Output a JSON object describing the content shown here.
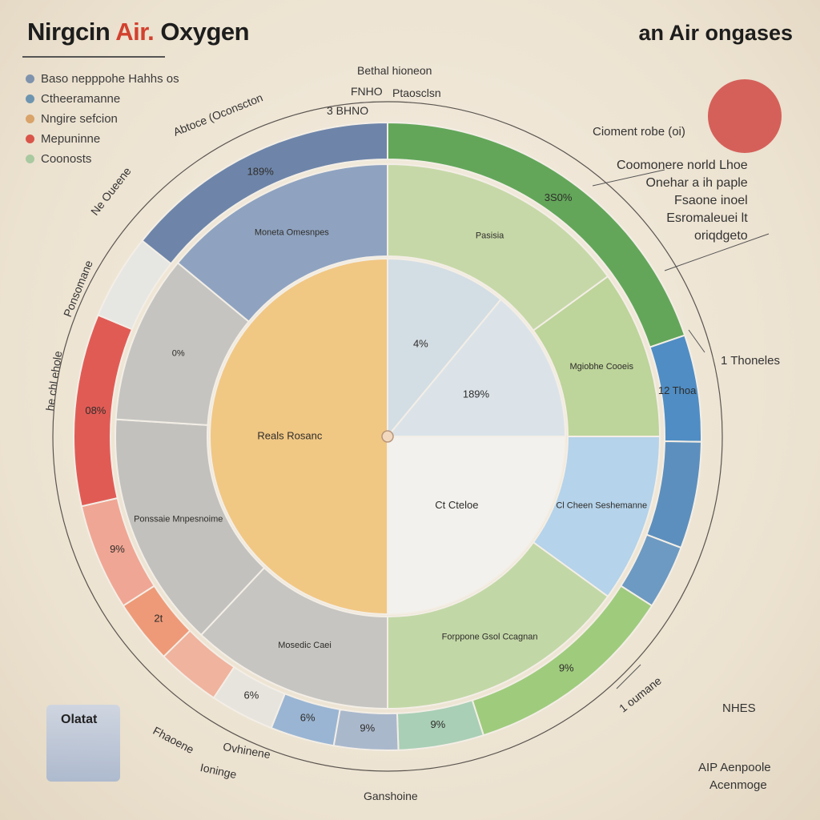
{
  "header": {
    "title_left_a": "Nirgcin",
    "title_left_b": "Air.",
    "title_left_c": "Oxygen",
    "title_right": "an Air ongases"
  },
  "legend": [
    {
      "label": "Baso nepppohe Hahhs os",
      "color": "#7f93ad"
    },
    {
      "label": "Ctheeramanne",
      "color": "#6e95b0"
    },
    {
      "label": "Nngire sefcion",
      "color": "#d9a36a"
    },
    {
      "label": "Mepuninne",
      "color": "#d9554a"
    },
    {
      "label": "Coonosts",
      "color": "#a9c9a0"
    }
  ],
  "side_label": {
    "text": "Cioment robe (oi)",
    "circle_color": "#d5605a"
  },
  "annotation_right": [
    "Coomonere norld Lhoe",
    "Onehar a ih paple",
    "Fsaone inoel",
    "Esromaleuei lt",
    "oriqdgeto"
  ],
  "outer_labels": {
    "top_a": "Bethal hioneon",
    "top_b": "FNHO",
    "top_c": "Ptaosclsn",
    "top_d": "3 BHNO",
    "upper_left": "Abtoce (Oconscton",
    "left_a": "Ne Oueene",
    "left_b": "Ponsomane",
    "left_c": "he chl ehole",
    "right_mid": "1 Thoneles",
    "right_low": "NHES",
    "lower_right": "1 oumane",
    "bottom_a": "Fhaoene",
    "bottom_b": "Ovhinene",
    "bottom_c": "Ioninge",
    "bottom_d": "Ganshoine",
    "stamp": "Olatat",
    "bottom_right_a": "AIP Aenpoole",
    "bottom_right_b": "Acenmoge"
  },
  "chart_data": {
    "type": "pie",
    "title": "",
    "rings": [
      {
        "name": "",
        "slices": [
          {
            "label": "4%",
            "value": 11,
            "color": "#d3dde4"
          },
          {
            "label": "189%",
            "value": 14,
            "color": "#dbe3e9"
          },
          {
            "label": "Ct Cteloe",
            "value": 25,
            "color": "#f3f1ee"
          },
          {
            "label": "Reals Rosanc",
            "value": 50,
            "color": "#f1c784"
          }
        ]
      },
      {
        "name": "",
        "slices": [
          {
            "label": "Pasisia",
            "value": 15,
            "color": "#c7d8a8"
          },
          {
            "label": "Mgiobhe Cooeis",
            "value": 10,
            "color": "#bdd49a"
          },
          {
            "label": "Cl Cheen Seshemanne",
            "value": 10,
            "color": "#b5d3ea"
          },
          {
            "label": "Forppone Gsol Ccagnan",
            "value": 15,
            "color": "#c2d7a6"
          },
          {
            "label": "Mosedic Caei",
            "value": 12,
            "color": "#c6c5c1"
          },
          {
            "label": "Ponssaie Mnpesnoime",
            "value": 14,
            "color": "#c2c1be"
          },
          {
            "label": "0%",
            "value": 10,
            "color": "#c5c4c0"
          },
          {
            "label": "Moneta Omesnpes",
            "value": 14,
            "color": "#8fa3c0"
          }
        ]
      },
      {
        "name": "",
        "slices": [
          {
            "label": "3S0%",
            "value": 18,
            "color": "#63a65a"
          },
          {
            "label": "12 Thoa",
            "value": 5,
            "color": "#4f8dc4"
          },
          {
            "label": "",
            "value": 5,
            "color": "#5c8fbd"
          },
          {
            "label": "",
            "value": 3,
            "color": "#6d9ac2"
          },
          {
            "label": "9%",
            "value": 10,
            "color": "#9fcb7d"
          },
          {
            "label": "9%",
            "value": 4,
            "color": "#a9cfb6"
          },
          {
            "label": "9%",
            "value": 3,
            "color": "#aab8cc"
          },
          {
            "label": "6%",
            "value": 3,
            "color": "#9ab5d3"
          },
          {
            "label": "6%",
            "value": 3,
            "color": "#e7e4de"
          },
          {
            "label": "",
            "value": 3,
            "color": "#f0b39e"
          },
          {
            "label": "2t",
            "value": 3,
            "color": "#ee9a78"
          },
          {
            "label": "9%",
            "value": 5,
            "color": "#f0a694"
          },
          {
            "label": "08%",
            "value": 9,
            "color": "#e15b55"
          },
          {
            "label": "",
            "value": 4,
            "color": "#e6e6e3"
          },
          {
            "label": "189%",
            "value": 13,
            "color": "#6e85a9"
          }
        ]
      }
    ]
  }
}
